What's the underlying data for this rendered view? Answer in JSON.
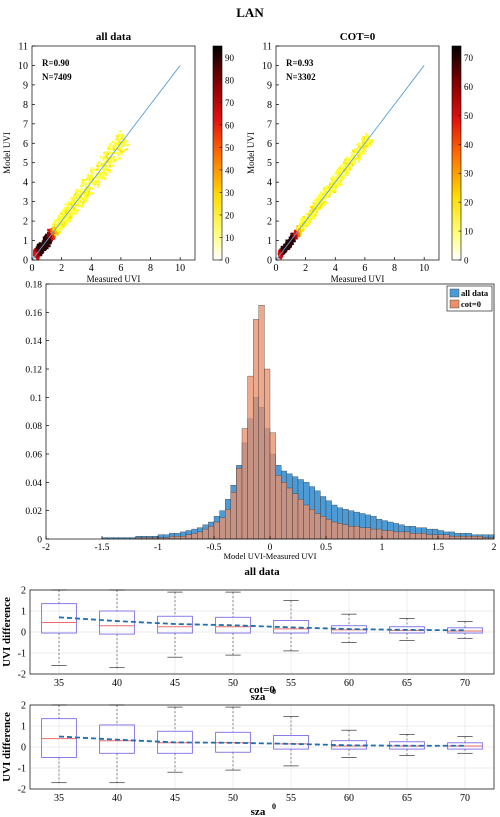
{
  "figure_title": "LAN",
  "chart_data": [
    {
      "type": "heatmap",
      "title": "all data",
      "xlabel": "Measured UVI",
      "ylabel": "Model UVI",
      "xlim": [
        0,
        11
      ],
      "ylim": [
        0,
        11
      ],
      "xticks": [
        0,
        2,
        4,
        6,
        8,
        10
      ],
      "yticks": [
        0,
        1,
        2,
        3,
        4,
        5,
        6,
        7,
        8,
        9,
        10,
        11
      ],
      "annotations": [
        "R=0.90",
        "N=7409"
      ],
      "colorbar_ticks": [
        0,
        10,
        20,
        30,
        40,
        50,
        60,
        70,
        80,
        90
      ],
      "colorbar_max": 95,
      "reference_line": [
        [
          0,
          0
        ],
        [
          10,
          10
        ]
      ],
      "cloud_extent": 6.3,
      "cloud_spread": 0.6
    },
    {
      "type": "heatmap",
      "title": "COT=0",
      "xlabel": "Measured UVI",
      "ylabel": "Model UVI",
      "xlim": [
        0,
        11
      ],
      "ylim": [
        0,
        11
      ],
      "xticks": [
        0,
        2,
        4,
        6,
        8,
        10
      ],
      "yticks": [
        0,
        1,
        2,
        3,
        4,
        5,
        6,
        7,
        8,
        9,
        10,
        11
      ],
      "annotations": [
        "R=0.93",
        "N=3302"
      ],
      "colorbar_ticks": [
        0,
        10,
        20,
        30,
        40,
        50,
        60,
        70
      ],
      "colorbar_max": 74,
      "reference_line": [
        [
          0,
          0
        ],
        [
          10,
          10
        ]
      ],
      "cloud_extent": 6.3,
      "cloud_spread": 0.4
    },
    {
      "type": "bar",
      "subtype": "histogram",
      "xlabel": "Model UVI-Measured UVI",
      "xlim": [
        -2,
        2
      ],
      "ylim": [
        0,
        0.18
      ],
      "xticks": [
        -2,
        -1.5,
        -1,
        -0.5,
        0,
        0.5,
        1,
        1.5,
        2
      ],
      "xtick_labels": [
        "-2",
        "-1.5",
        "-1",
        "-0.5",
        "0",
        "0.5",
        "1",
        "1.5",
        "2"
      ],
      "yticks": [
        0,
        0.02,
        0.04,
        0.06,
        0.08,
        0.1,
        0.12,
        0.14,
        0.16,
        0.18
      ],
      "ytick_labels": [
        "0",
        "0.02",
        "0.04",
        "0.06",
        "0.08",
        "0.1",
        "0.12",
        "0.14",
        "0.16",
        "0.18"
      ],
      "bin_start": -2,
      "bin_width": 0.05,
      "legend_position": "top-right",
      "series": [
        {
          "name": "all data",
          "color": "#4c9bd6",
          "values": [
            0,
            0,
            0,
            0,
            0,
            0,
            0,
            0,
            0,
            0,
            0.001,
            0.001,
            0.001,
            0.001,
            0.001,
            0.001,
            0.002,
            0.002,
            0.002,
            0.002,
            0.003,
            0.003,
            0.004,
            0.004,
            0.005,
            0.006,
            0.007,
            0.008,
            0.01,
            0.012,
            0.016,
            0.02,
            0.028,
            0.038,
            0.052,
            0.068,
            0.085,
            0.1,
            0.093,
            0.078,
            0.06,
            0.052,
            0.048,
            0.046,
            0.044,
            0.042,
            0.04,
            0.037,
            0.034,
            0.03,
            0.027,
            0.024,
            0.022,
            0.021,
            0.02,
            0.019,
            0.018,
            0.017,
            0.016,
            0.014,
            0.013,
            0.012,
            0.011,
            0.01,
            0.009,
            0.009,
            0.008,
            0.008,
            0.007,
            0.007,
            0.006,
            0.005,
            0.005,
            0.004,
            0.004,
            0.004,
            0.003,
            0.003,
            0.003,
            0.003
          ]
        },
        {
          "name": "cot=0",
          "color": "#e98f6b",
          "values": [
            0,
            0,
            0,
            0,
            0,
            0,
            0,
            0,
            0,
            0,
            0,
            0,
            0,
            0,
            0,
            0,
            0.001,
            0.001,
            0.001,
            0.001,
            0.001,
            0.001,
            0.002,
            0.002,
            0.002,
            0.003,
            0.004,
            0.005,
            0.007,
            0.009,
            0.012,
            0.015,
            0.021,
            0.033,
            0.05,
            0.078,
            0.115,
            0.155,
            0.165,
            0.12,
            0.075,
            0.045,
            0.04,
            0.036,
            0.032,
            0.028,
            0.024,
            0.021,
            0.018,
            0.016,
            0.014,
            0.012,
            0.011,
            0.01,
            0.009,
            0.009,
            0.008,
            0.008,
            0.007,
            0.007,
            0.006,
            0.006,
            0.005,
            0.005,
            0.005,
            0.004,
            0.004,
            0.004,
            0.003,
            0.003,
            0.003,
            0.003,
            0.002,
            0.002,
            0.002,
            0.002,
            0.002,
            0.002,
            0.001,
            0.001
          ]
        }
      ]
    },
    {
      "type": "box",
      "title": "all data",
      "xlabel": "sza",
      "xlabel_superscript": "0",
      "ylabel": "UVI difference",
      "ylim": [
        -2,
        2
      ],
      "yticks": [
        -2,
        -1,
        0,
        1,
        2
      ],
      "categories": [
        "35",
        "40",
        "45",
        "50",
        "55",
        "60",
        "65",
        "70"
      ],
      "boxes": [
        {
          "whisker_low": -1.6,
          "q1": -0.05,
          "median": 0.45,
          "q3": 1.35,
          "whisker_high": 2.0,
          "mean": 0.7
        },
        {
          "whisker_low": -1.7,
          "q1": -0.1,
          "median": 0.3,
          "q3": 1.0,
          "whisker_high": 2.0,
          "mean": 0.52
        },
        {
          "whisker_low": -1.2,
          "q1": -0.05,
          "median": 0.25,
          "q3": 0.75,
          "whisker_high": 1.9,
          "mean": 0.38
        },
        {
          "whisker_low": -1.1,
          "q1": -0.05,
          "median": 0.25,
          "q3": 0.7,
          "whisker_high": 1.9,
          "mean": 0.32
        },
        {
          "whisker_low": -0.9,
          "q1": -0.05,
          "median": 0.15,
          "q3": 0.55,
          "whisker_high": 1.5,
          "mean": 0.22
        },
        {
          "whisker_low": -0.5,
          "q1": -0.05,
          "median": 0.1,
          "q3": 0.3,
          "whisker_high": 0.85,
          "mean": 0.14
        },
        {
          "whisker_low": -0.4,
          "q1": -0.05,
          "median": 0.08,
          "q3": 0.25,
          "whisker_high": 0.65,
          "mean": 0.1
        },
        {
          "whisker_low": -0.3,
          "q1": -0.05,
          "median": 0.05,
          "q3": 0.2,
          "whisker_high": 0.5,
          "mean": 0.08
        }
      ]
    },
    {
      "type": "box",
      "title": "cot=0",
      "xlabel": "sza",
      "xlabel_superscript": "0",
      "ylabel": "UVI difference",
      "ylim": [
        -2,
        2
      ],
      "yticks": [
        -2,
        -1,
        0,
        1,
        2
      ],
      "categories": [
        "35",
        "40",
        "45",
        "50",
        "55",
        "60",
        "65",
        "70"
      ],
      "boxes": [
        {
          "whisker_low": -1.7,
          "q1": -0.5,
          "median": 0.4,
          "q3": 1.35,
          "whisker_high": 2.0,
          "mean": 0.5
        },
        {
          "whisker_low": -1.7,
          "q1": -0.3,
          "median": 0.3,
          "q3": 1.05,
          "whisker_high": 2.0,
          "mean": 0.35
        },
        {
          "whisker_low": -1.2,
          "q1": -0.3,
          "median": 0.2,
          "q3": 0.75,
          "whisker_high": 1.9,
          "mean": 0.22
        },
        {
          "whisker_low": -1.1,
          "q1": -0.25,
          "median": 0.2,
          "q3": 0.7,
          "whisker_high": 1.9,
          "mean": 0.2
        },
        {
          "whisker_low": -0.9,
          "q1": -0.1,
          "median": 0.15,
          "q3": 0.55,
          "whisker_high": 1.45,
          "mean": 0.15
        },
        {
          "whisker_low": -0.5,
          "q1": -0.1,
          "median": 0.05,
          "q3": 0.3,
          "whisker_high": 0.8,
          "mean": 0.08
        },
        {
          "whisker_low": -0.4,
          "q1": -0.1,
          "median": 0.05,
          "q3": 0.25,
          "whisker_high": 0.6,
          "mean": 0.06
        },
        {
          "whisker_low": -0.3,
          "q1": -0.1,
          "median": 0.05,
          "q3": 0.2,
          "whisker_high": 0.5,
          "mean": 0.06
        }
      ]
    }
  ]
}
